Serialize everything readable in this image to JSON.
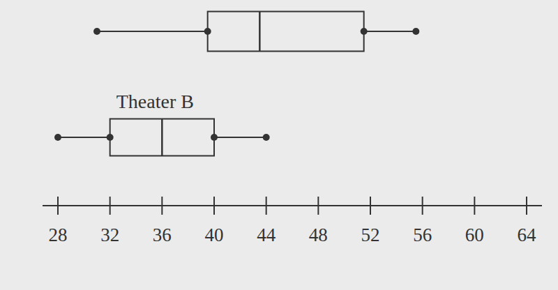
{
  "chart_data": {
    "type": "box",
    "orientation": "horizontal",
    "boxes": [
      {
        "min": 31,
        "q1": 39.5,
        "median": 43.5,
        "q3": 51.5,
        "max": 55.5
      },
      {
        "name": "Theater B",
        "min": 28,
        "q1": 32,
        "median": 36,
        "q3": 40,
        "max": 44
      }
    ],
    "xlim": [
      28,
      64
    ],
    "xticks": [
      28,
      32,
      36,
      40,
      44,
      48,
      52,
      56,
      60,
      64
    ],
    "color": "#333333",
    "tick_labels": "x"
  }
}
